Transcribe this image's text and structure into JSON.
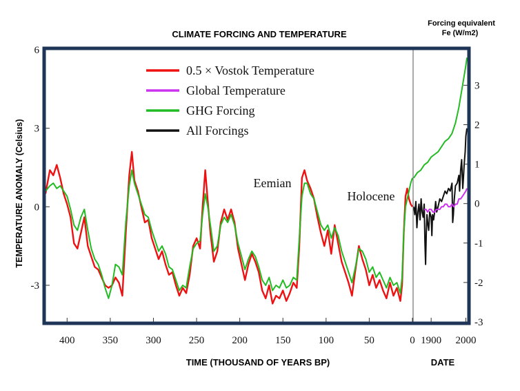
{
  "chart_data": {
    "type": "line",
    "title": "CLIMATE FORCING AND TEMPERATURE",
    "ylabel": "TEMPERATURE ANOMALY (Celsius)",
    "y2label_line1": "Forcing equivalent",
    "y2label_line2": "Fe (W/m2)",
    "xlabel_left": "TIME (THOUSAND OF YEARS BP)",
    "xlabel_right": "DATE",
    "left_panel": {
      "xlim": [
        425,
        0
      ],
      "xticks": [
        "400",
        "350",
        "300",
        "250",
        "200",
        "150",
        "100",
        "50",
        "0"
      ],
      "xtick_values": [
        400,
        350,
        300,
        250,
        200,
        150,
        100,
        50,
        0
      ]
    },
    "right_panel": {
      "xlim": [
        1850,
        2005
      ],
      "xticks": [
        "1900",
        "2000"
      ],
      "xtick_values": [
        1900,
        2000
      ]
    },
    "ylim": [
      -4.4,
      6
    ],
    "yticks": [
      "6",
      "3",
      "0",
      "-3"
    ],
    "ytick_values": [
      6,
      3,
      0,
      -3
    ],
    "y2lim": [
      -3,
      3.9
    ],
    "y2ticks": [
      "3",
      "2",
      "1",
      "0",
      "-1",
      "-2",
      "-3"
    ],
    "y2tick_values": [
      3,
      2,
      1,
      0,
      -1,
      -2,
      -3
    ],
    "legend": {
      "placement": "top-left",
      "entries": [
        {
          "label": "0.5 × Vostok Temperature",
          "color": "#ee1111"
        },
        {
          "label": "Global Temperature",
          "color": "#cc33ee"
        },
        {
          "label": "GHG Forcing",
          "color": "#22bb22"
        },
        {
          "label": "All Forcings",
          "color": "#111111"
        }
      ]
    },
    "annotations": [
      {
        "text": "Eemian",
        "x": 143,
        "y": 0.7
      },
      {
        "text": "Holocene",
        "x": 30,
        "y": 0.2
      }
    ],
    "series": [
      {
        "name": "0.5 × Vostok Temperature",
        "color": "#ee1111",
        "panel": "left",
        "axis": "left",
        "x": [
          425,
          420,
          416,
          412,
          408,
          404,
          400,
          396,
          392,
          388,
          384,
          380,
          376,
          372,
          368,
          364,
          360,
          356,
          352,
          348,
          344,
          340,
          336,
          332,
          328,
          325,
          322,
          318,
          314,
          310,
          306,
          302,
          298,
          294,
          290,
          286,
          282,
          278,
          274,
          270,
          266,
          262,
          258,
          254,
          250,
          246,
          243,
          240,
          237,
          234,
          230,
          226,
          222,
          218,
          214,
          210,
          206,
          202,
          198,
          194,
          190,
          186,
          182,
          178,
          174,
          170,
          166,
          162,
          158,
          154,
          150,
          146,
          142,
          138,
          134,
          131,
          128,
          125,
          122,
          118,
          114,
          110,
          106,
          102,
          98,
          94,
          90,
          86,
          82,
          78,
          74,
          70,
          66,
          62,
          58,
          54,
          50,
          46,
          42,
          38,
          34,
          30,
          26,
          22,
          18,
          14,
          12,
          10,
          8,
          6,
          4,
          2,
          0
        ],
        "values": [
          0.5,
          1.4,
          1.2,
          1.6,
          1.1,
          0.5,
          0.1,
          -0.4,
          -1.4,
          -1.6,
          -1.0,
          -0.4,
          -1.5,
          -1.9,
          -2.3,
          -2.4,
          -2.7,
          -3.0,
          -3.1,
          -3.0,
          -2.7,
          -2.9,
          -3.4,
          -1.0,
          1.2,
          2.1,
          1.0,
          0.6,
          0.0,
          -0.6,
          -0.5,
          -1.2,
          -1.6,
          -2.0,
          -1.7,
          -2.2,
          -2.6,
          -2.5,
          -3.0,
          -3.4,
          -3.1,
          -3.3,
          -2.6,
          -1.5,
          -1.2,
          -1.6,
          0.0,
          1.4,
          0.2,
          -1.0,
          -2.1,
          -1.7,
          -0.6,
          -0.1,
          -0.5,
          -0.1,
          -0.6,
          -1.6,
          -2.2,
          -2.8,
          -2.2,
          -1.8,
          -2.1,
          -2.5,
          -3.2,
          -3.5,
          -3.0,
          -3.7,
          -3.4,
          -3.5,
          -3.2,
          -3.6,
          -3.3,
          -2.9,
          -3.1,
          -1.5,
          1.1,
          1.4,
          1.0,
          0.7,
          0.3,
          -0.4,
          -1.0,
          -1.5,
          -0.9,
          -1.8,
          -0.7,
          -1.4,
          -2.1,
          -2.5,
          -2.9,
          -3.4,
          -2.4,
          -1.5,
          -2.0,
          -2.4,
          -3.0,
          -2.6,
          -3.1,
          -2.8,
          -3.2,
          -3.5,
          -2.9,
          -3.4,
          -3.1,
          -3.6,
          -3.0,
          -1.0,
          0.4,
          0.7,
          0.3,
          0.1,
          0.0
        ]
      },
      {
        "name": "GHG Forcing",
        "color": "#22bb22",
        "panel": "left",
        "axis": "left",
        "x": [
          425,
          420,
          416,
          412,
          408,
          404,
          400,
          396,
          392,
          388,
          384,
          380,
          376,
          372,
          368,
          364,
          360,
          356,
          352,
          348,
          344,
          340,
          336,
          332,
          328,
          325,
          322,
          318,
          314,
          310,
          306,
          302,
          298,
          294,
          290,
          286,
          282,
          278,
          274,
          270,
          266,
          262,
          258,
          254,
          250,
          246,
          243,
          240,
          237,
          234,
          230,
          226,
          222,
          218,
          214,
          210,
          206,
          202,
          198,
          194,
          190,
          186,
          182,
          178,
          174,
          170,
          166,
          162,
          158,
          154,
          150,
          146,
          142,
          138,
          134,
          131,
          128,
          125,
          122,
          118,
          114,
          110,
          106,
          102,
          98,
          94,
          90,
          86,
          82,
          78,
          74,
          70,
          66,
          62,
          58,
          54,
          50,
          46,
          42,
          38,
          34,
          30,
          26,
          22,
          18,
          14,
          12,
          10,
          8,
          6,
          4,
          2,
          0
        ],
        "values": [
          0.6,
          0.8,
          0.9,
          0.7,
          0.8,
          0.6,
          0.4,
          -0.1,
          -0.7,
          -0.9,
          -0.4,
          -0.1,
          -0.9,
          -1.6,
          -2.0,
          -2.2,
          -2.6,
          -3.1,
          -3.5,
          -3.0,
          -2.2,
          -2.3,
          -2.6,
          -0.6,
          0.8,
          1.4,
          0.9,
          0.5,
          0.1,
          -0.3,
          -0.4,
          -0.9,
          -1.3,
          -1.7,
          -1.5,
          -1.8,
          -2.3,
          -2.4,
          -2.8,
          -3.2,
          -3.0,
          -3.1,
          -2.3,
          -1.6,
          -1.4,
          -1.3,
          -0.3,
          0.5,
          0.0,
          -0.7,
          -1.7,
          -1.5,
          -0.7,
          -0.4,
          -0.6,
          -0.3,
          -0.7,
          -1.4,
          -1.9,
          -2.4,
          -2.0,
          -1.7,
          -1.9,
          -2.3,
          -2.8,
          -3.0,
          -2.7,
          -3.2,
          -3.0,
          -3.1,
          -2.8,
          -3.1,
          -3.0,
          -2.7,
          -2.8,
          -1.2,
          0.4,
          0.9,
          0.9,
          0.5,
          0.3,
          -0.2,
          -0.7,
          -0.9,
          -0.7,
          -1.2,
          -0.8,
          -1.1,
          -1.7,
          -2.1,
          -2.5,
          -2.9,
          -2.3,
          -1.6,
          -1.7,
          -2.0,
          -2.5,
          -2.3,
          -2.7,
          -2.5,
          -2.8,
          -3.1,
          -2.7,
          -3.0,
          -2.9,
          -3.3,
          -2.7,
          -1.0,
          0.0,
          0.3,
          0.6,
          0.9,
          1.1
        ]
      },
      {
        "name": "GHG Forcing",
        "color": "#22bb22",
        "panel": "right",
        "axis": "left",
        "x": [
          1850,
          1860,
          1870,
          1880,
          1890,
          1900,
          1910,
          1920,
          1930,
          1940,
          1950,
          1960,
          1970,
          1975,
          1980,
          1985,
          1990,
          1995,
          2000,
          2003
        ],
        "values": [
          1.1,
          1.3,
          1.4,
          1.6,
          1.7,
          1.9,
          2.0,
          2.1,
          2.3,
          2.5,
          2.6,
          2.8,
          3.2,
          3.5,
          3.8,
          4.2,
          4.6,
          5.0,
          5.4,
          5.7
        ]
      },
      {
        "name": "All Forcings",
        "color": "#111111",
        "panel": "right",
        "axis": "left",
        "x": [
          1850,
          1853,
          1856,
          1859,
          1862,
          1865,
          1868,
          1871,
          1874,
          1877,
          1880,
          1882,
          1884,
          1886,
          1888,
          1890,
          1893,
          1896,
          1900,
          1902,
          1904,
          1907,
          1910,
          1913,
          1916,
          1920,
          1925,
          1930,
          1935,
          1940,
          1945,
          1950,
          1955,
          1960,
          1962,
          1964,
          1966,
          1970,
          1975,
          1980,
          1982,
          1985,
          1988,
          1991,
          1993,
          1995,
          1998,
          2000,
          2003
        ],
        "values": [
          0.0,
          -0.3,
          0.2,
          -0.8,
          -0.2,
          0.1,
          -0.5,
          0.3,
          -0.2,
          -0.4,
          0.1,
          -1.3,
          -2.2,
          -1.0,
          -0.3,
          -0.6,
          -0.9,
          -0.2,
          -0.4,
          -1.1,
          -0.3,
          -0.5,
          -0.2,
          0.2,
          -0.2,
          0.0,
          0.3,
          0.2,
          0.4,
          0.6,
          0.5,
          0.7,
          0.6,
          0.9,
          -0.6,
          -0.3,
          0.2,
          0.8,
          0.9,
          1.2,
          0.6,
          1.4,
          1.8,
          0.7,
          1.1,
          1.6,
          2.1,
          2.7,
          3.0
        ]
      },
      {
        "name": "Global Temperature",
        "color": "#cc33ee",
        "panel": "right",
        "axis": "left",
        "x": [
          1880,
          1885,
          1890,
          1895,
          1900,
          1905,
          1910,
          1915,
          1920,
          1925,
          1930,
          1935,
          1940,
          1945,
          1950,
          1955,
          1960,
          1965,
          1970,
          1975,
          1980,
          1985,
          1990,
          1995,
          2000,
          2003
        ],
        "values": [
          -0.1,
          -0.1,
          -0.2,
          -0.1,
          -0.1,
          -0.2,
          -0.2,
          -0.1,
          -0.1,
          -0.1,
          0.0,
          0.0,
          0.1,
          0.1,
          0.0,
          0.0,
          0.1,
          0.0,
          0.1,
          0.1,
          0.3,
          0.3,
          0.4,
          0.5,
          0.6,
          0.7
        ]
      }
    ]
  }
}
